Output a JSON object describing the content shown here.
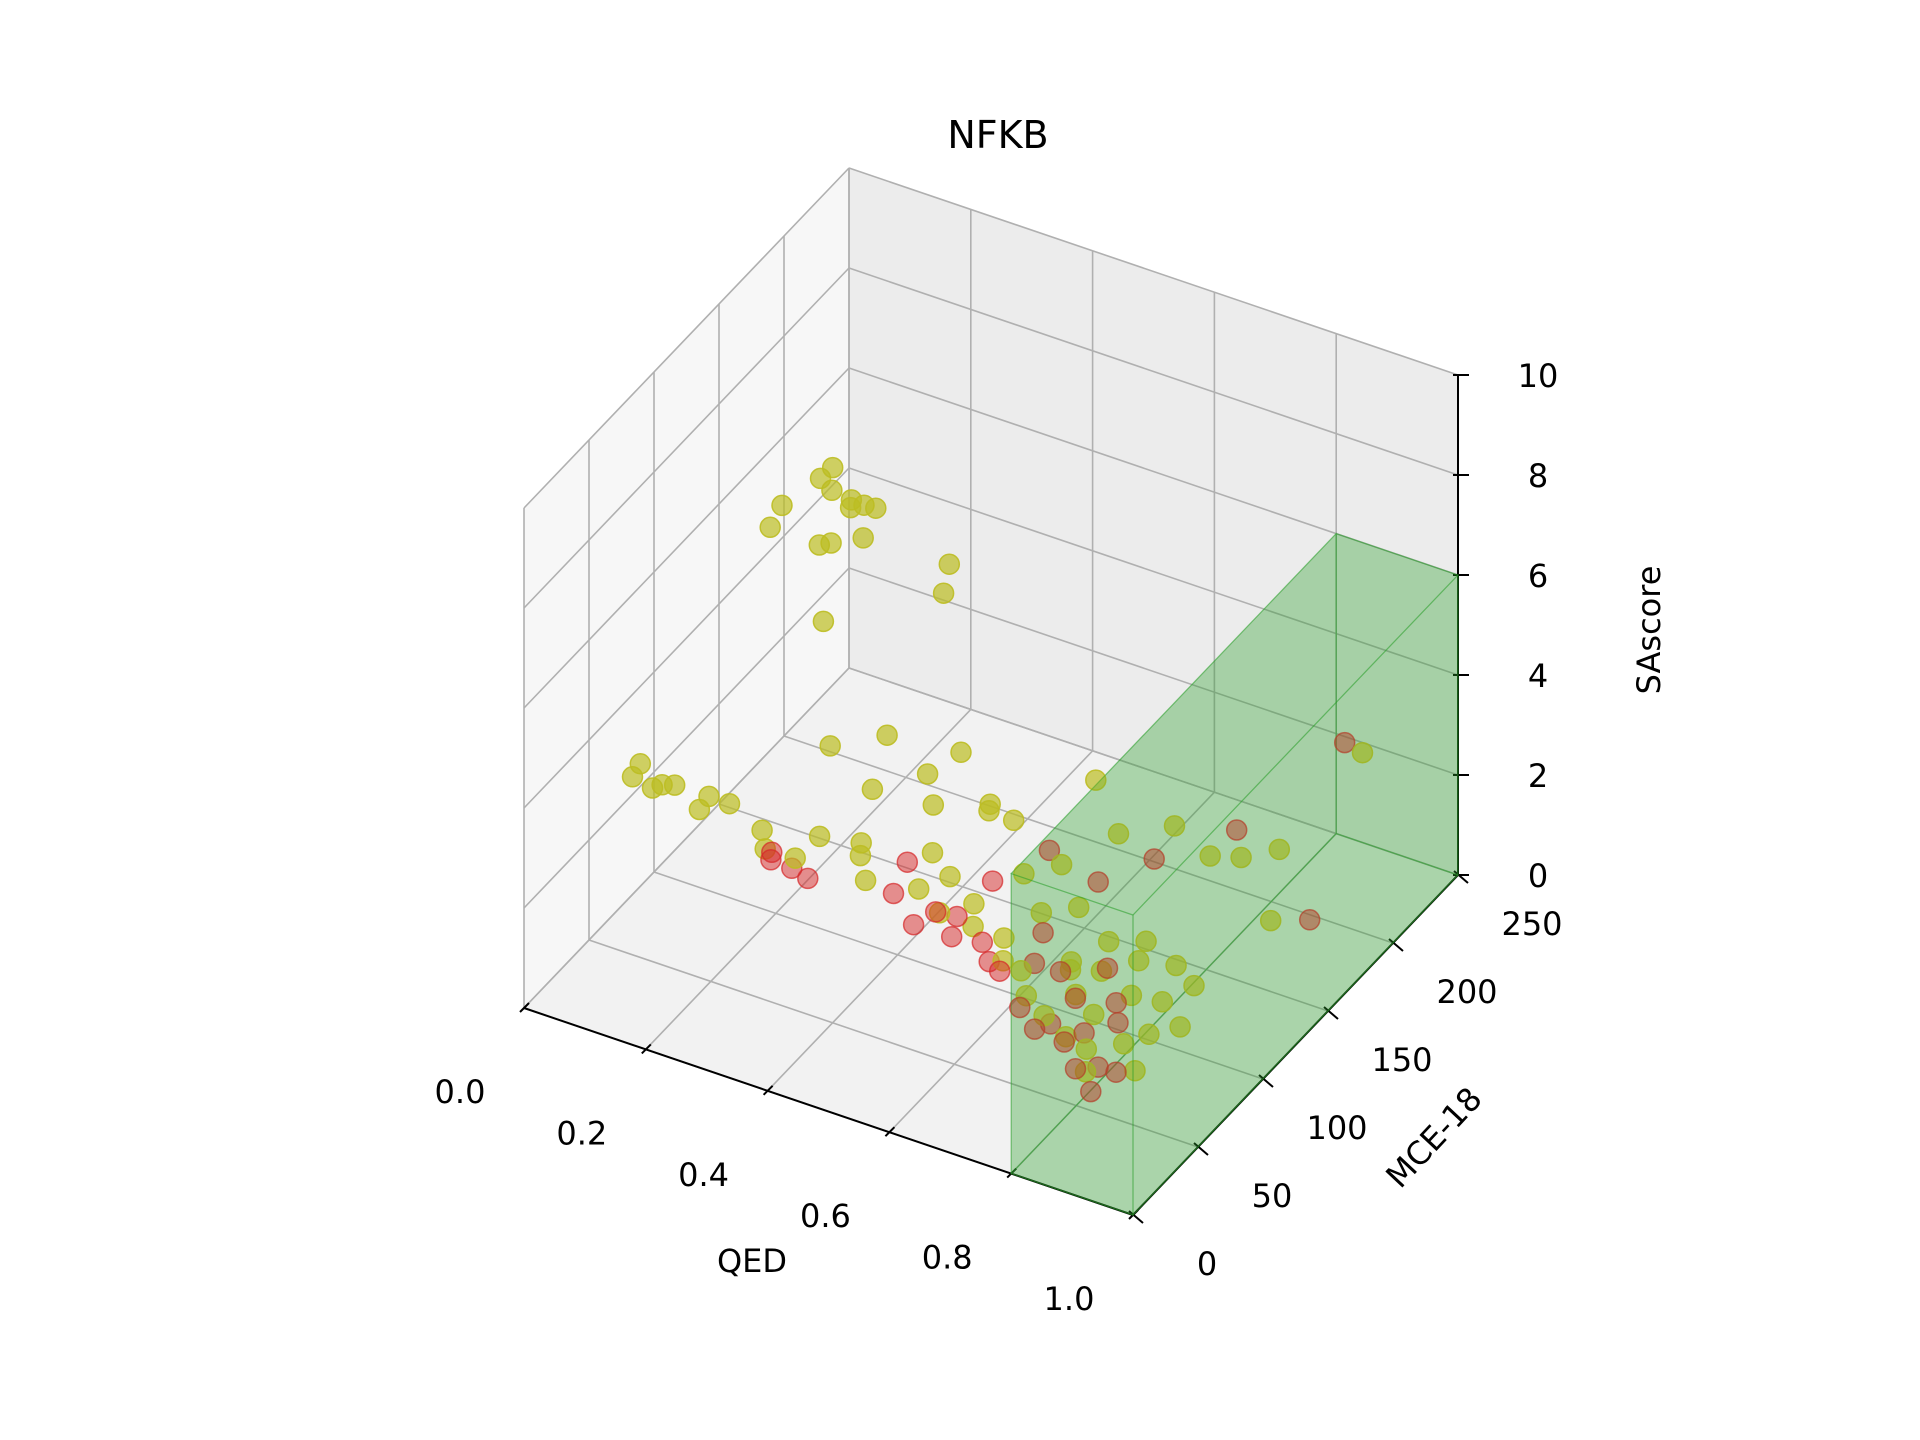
{
  "chart_data": {
    "type": "scatter",
    "title": "NFKB",
    "xlabel": "QED",
    "ylabel": "MCE-18",
    "zlabel": "SAscore",
    "xlim": [
      0.0,
      1.0
    ],
    "ylim": [
      0,
      250
    ],
    "zlim": [
      0,
      10
    ],
    "x_ticks": [
      "0.0",
      "0.2",
      "0.4",
      "0.6",
      "0.8",
      "1.0"
    ],
    "y_ticks": [
      "0",
      "50",
      "100",
      "150",
      "200",
      "250"
    ],
    "z_ticks": [
      "0",
      "2",
      "4",
      "6",
      "8",
      "10"
    ],
    "grid": true,
    "region": {
      "x": [
        0.8,
        1.0
      ],
      "y": [
        0,
        250
      ],
      "z": [
        0,
        6
      ],
      "color": "#2ca02c",
      "alpha": 0.2
    },
    "series": [
      {
        "color": "#d62728",
        "alpha": 0.5,
        "points": [
          [
            0.32,
            40,
            3.2
          ],
          [
            0.35,
            42,
            3.1
          ],
          [
            0.33,
            36,
            3.5
          ],
          [
            0.37,
            45,
            2.9
          ],
          [
            0.5,
            50,
            3.0
          ],
          [
            0.55,
            42,
            2.8
          ],
          [
            0.6,
            52,
            2.9
          ],
          [
            0.58,
            45,
            3.1
          ],
          [
            0.48,
            70,
            3.0
          ],
          [
            0.62,
            70,
            3.2
          ],
          [
            0.65,
            48,
            2.7
          ],
          [
            0.7,
            38,
            2.6
          ],
          [
            0.72,
            62,
            2.8
          ],
          [
            0.75,
            30,
            2.3
          ],
          [
            0.77,
            52,
            2.5
          ],
          [
            0.8,
            18,
            2.4
          ],
          [
            0.82,
            40,
            2.5
          ],
          [
            0.84,
            22,
            2.2
          ],
          [
            0.86,
            28,
            2.3
          ],
          [
            0.88,
            12,
            2.1
          ],
          [
            0.9,
            20,
            2.0
          ],
          [
            0.83,
            60,
            2.6
          ],
          [
            0.92,
            5,
            2.0
          ],
          [
            0.94,
            15,
            2.2
          ],
          [
            0.87,
            48,
            2.4
          ],
          [
            0.66,
            95,
            3.3
          ],
          [
            0.74,
            95,
            3.0
          ],
          [
            0.8,
            110,
            3.3
          ],
          [
            0.85,
            150,
            3.0
          ],
          [
            0.97,
            150,
            1.7
          ],
          [
            0.91,
            205,
            3.5
          ],
          [
            0.71,
            60,
            2.2
          ],
          [
            0.64,
            58,
            2.0
          ],
          [
            0.57,
            62,
            2.1
          ],
          [
            0.79,
            35,
            2.0
          ],
          [
            0.89,
            40,
            2.3
          ]
        ]
      },
      {
        "color": "#bcbd22",
        "alpha": 0.7,
        "points": [
          [
            0.05,
            60,
            3.2
          ],
          [
            0.08,
            52,
            3.8
          ],
          [
            0.1,
            52,
            3.4
          ],
          [
            0.13,
            55,
            3.5
          ],
          [
            0.16,
            60,
            3.0
          ],
          [
            0.18,
            58,
            3.4
          ],
          [
            0.12,
            50,
            3.6
          ],
          [
            0.22,
            55,
            3.5
          ],
          [
            0.28,
            52,
            3.3
          ],
          [
            0.3,
            45,
            3.2
          ],
          [
            0.36,
            40,
            3.4
          ],
          [
            0.4,
            72,
            3.0
          ],
          [
            0.42,
            62,
            3.1
          ],
          [
            0.45,
            52,
            3.0
          ],
          [
            0.5,
            80,
            3.0
          ],
          [
            0.52,
            60,
            2.9
          ],
          [
            0.55,
            70,
            3.0
          ],
          [
            0.58,
            48,
            3.0
          ],
          [
            0.6,
            65,
            2.8
          ],
          [
            0.62,
            55,
            2.7
          ],
          [
            0.65,
            80,
            3.2
          ],
          [
            0.66,
            60,
            2.5
          ],
          [
            0.68,
            50,
            2.4
          ],
          [
            0.7,
            70,
            2.9
          ],
          [
            0.72,
            45,
            2.5
          ],
          [
            0.74,
            80,
            2.9
          ],
          [
            0.75,
            35,
            2.4
          ],
          [
            0.76,
            65,
            2.3
          ],
          [
            0.78,
            55,
            2.5
          ],
          [
            0.79,
            30,
            2.3
          ],
          [
            0.8,
            75,
            2.6
          ],
          [
            0.81,
            45,
            2.4
          ],
          [
            0.82,
            60,
            2.5
          ],
          [
            0.83,
            28,
            2.1
          ],
          [
            0.84,
            85,
            2.5
          ],
          [
            0.85,
            40,
            2.3
          ],
          [
            0.86,
            70,
            2.6
          ],
          [
            0.87,
            25,
            2.1
          ],
          [
            0.88,
            55,
            2.4
          ],
          [
            0.89,
            15,
            2.0
          ],
          [
            0.9,
            80,
            2.4
          ],
          [
            0.91,
            35,
            2.1
          ],
          [
            0.92,
            60,
            2.3
          ],
          [
            0.93,
            45,
            2.1
          ],
          [
            0.94,
            75,
            2.3
          ],
          [
            0.95,
            25,
            2.0
          ],
          [
            0.96,
            55,
            2.1
          ],
          [
            0.9,
            130,
            3.2
          ],
          [
            0.86,
            125,
            3.2
          ],
          [
            0.97,
            120,
            2.5
          ],
          [
            0.95,
            200,
            3.6
          ],
          [
            0.92,
            150,
            2.9
          ],
          [
            0.46,
            95,
            4.0
          ],
          [
            0.4,
            40,
            4.0
          ],
          [
            0.34,
            120,
            3.6
          ],
          [
            0.44,
            130,
            3.4
          ],
          [
            0.58,
            105,
            3.3
          ],
          [
            0.55,
            100,
            3.5
          ],
          [
            0.68,
            95,
            3.1
          ],
          [
            0.72,
            120,
            3.2
          ],
          [
            0.78,
            135,
            3.2
          ],
          [
            0.64,
            140,
            3.4
          ],
          [
            0.52,
            115,
            3.1
          ],
          [
            0.48,
            90,
            3.6
          ],
          [
            0.38,
            90,
            3.5
          ],
          [
            0.3,
            95,
            3.9
          ],
          [
            0.02,
            180,
            4.8
          ],
          [
            0.05,
            175,
            5.5
          ],
          [
            0.06,
            200,
            5.4
          ],
          [
            0.1,
            205,
            5.0
          ],
          [
            0.11,
            210,
            4.8
          ],
          [
            0.12,
            195,
            5.2
          ],
          [
            0.09,
            185,
            4.6
          ],
          [
            0.13,
            200,
            4.5
          ],
          [
            0.14,
            205,
            5.0
          ],
          [
            0.1,
            190,
            5.6
          ],
          [
            0.08,
            200,
            5.7
          ],
          [
            0.12,
            180,
            4.9
          ],
          [
            0.15,
            160,
            4.0
          ],
          [
            0.25,
            210,
            4.2
          ],
          [
            0.23,
            215,
            3.4
          ]
        ]
      }
    ]
  }
}
